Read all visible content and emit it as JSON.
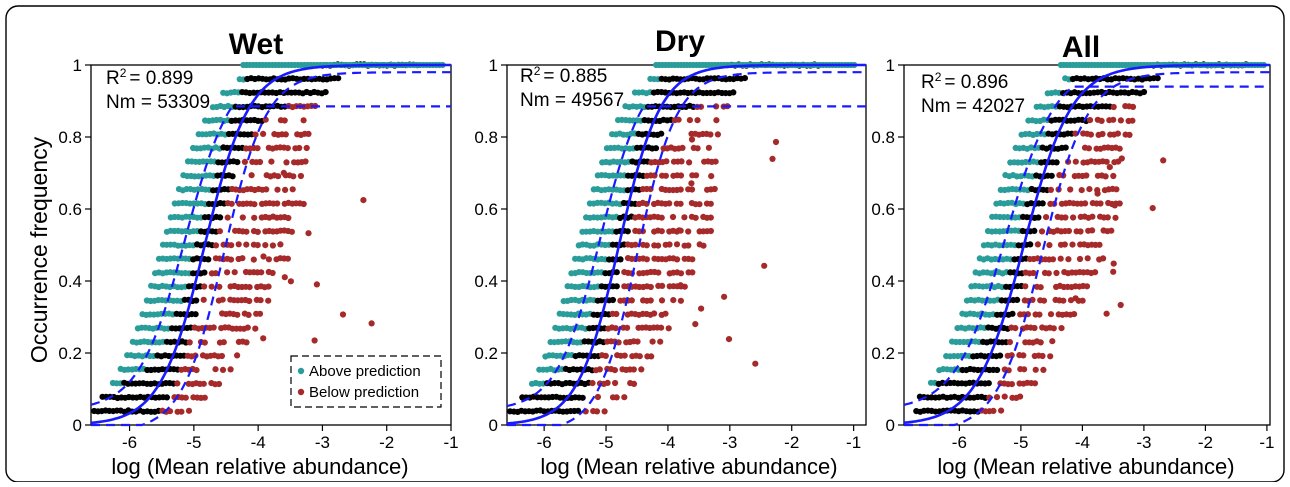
{
  "colors": {
    "above": "#2a9d9a",
    "below": "#a62a2a",
    "neutral": "#000000",
    "fit": "#1a1aff"
  },
  "ylabel": "Occurrence frequency",
  "legend": {
    "above_label": "Above prediction",
    "below_label": "Below prediction"
  },
  "chart_data": [
    {
      "type": "scatter",
      "title": "Wet",
      "xlabel": "log (Mean relative abundance)",
      "xlim": [
        -6.6,
        -1.0
      ],
      "ylim": [
        0,
        1
      ],
      "xticks": [
        "-6",
        "-5",
        "-4",
        "-3",
        "-2",
        "-1"
      ],
      "yticks": [
        "0",
        "0.2",
        "0.4",
        "0.6",
        "0.8",
        "1"
      ],
      "r2_label": "R",
      "r2_sup": "2",
      "r2_value": "= 0.899",
      "nm_text": "Nm = 53309",
      "fit": {
        "midpoint": -4.83,
        "slope": 2.9,
        "upper_ci_plateau": 0.885
      },
      "point_cloud": {
        "min_x": -6.55,
        "max_x": -1.1
      },
      "legend": true
    },
    {
      "type": "scatter",
      "title": "Dry",
      "xlabel": "log (Mean relative abundance)",
      "xlim": [
        -6.6,
        -0.8
      ],
      "ylim": [
        0,
        1
      ],
      "xticks": [
        "-6",
        "-5",
        "-4",
        "-3",
        "-2",
        "-1"
      ],
      "yticks": [
        "0",
        "0.2",
        "0.4",
        "0.6",
        "0.8",
        "1"
      ],
      "r2_label": "R",
      "r2_sup": "2",
      "r2_value": "= 0.885",
      "nm_text": "Nm = 49567",
      "fit": {
        "midpoint": -4.79,
        "slope": 3.0,
        "upper_ci_plateau": 0.885
      },
      "point_cloud": {
        "min_x": -6.55,
        "max_x": -0.95
      },
      "legend": false
    },
    {
      "type": "scatter",
      "title": "All",
      "xlabel": "log (Mean relative abundance)",
      "xlim": [
        -6.9,
        -0.95
      ],
      "ylim": [
        0,
        1
      ],
      "xticks": [
        "-6",
        "-5",
        "-4",
        "-3",
        "-2",
        "-1"
      ],
      "yticks": [
        "0",
        "0.2",
        "0.4",
        "0.6",
        "0.8",
        "1"
      ],
      "r2_label": "R",
      "r2_sup": "2",
      "r2_value": "= 0.896",
      "nm_text": "Nm = 42027",
      "fit": {
        "midpoint": -4.95,
        "slope": 2.6,
        "upper_ci_plateau": 0.94
      },
      "point_cloud": {
        "min_x": -6.7,
        "max_x": -1.05
      },
      "legend": false
    }
  ]
}
